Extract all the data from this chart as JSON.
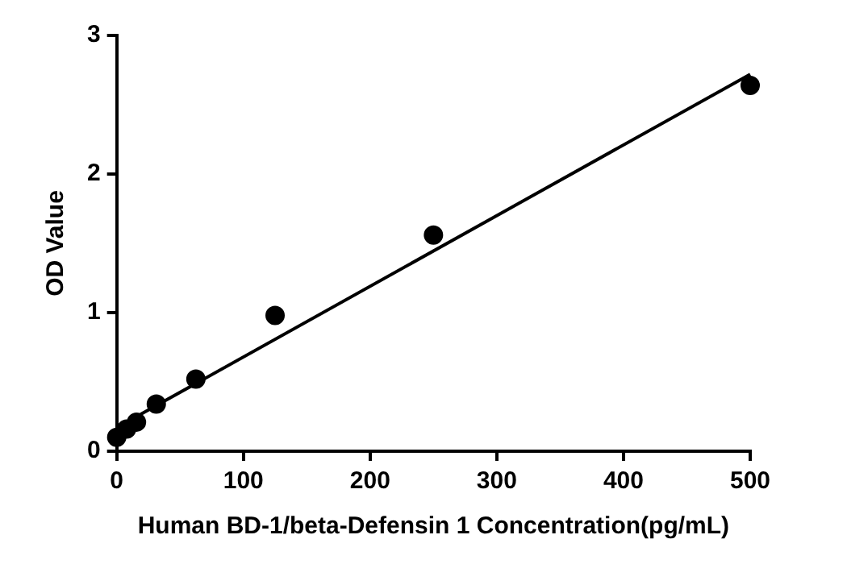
{
  "chart_data": {
    "type": "scatter",
    "xlabel": "Human BD-1/beta-Defensin 1 Concentration(pg/mL)",
    "ylabel": "OD Value",
    "xlim": [
      0,
      500
    ],
    "xticks": [
      0,
      100,
      200,
      300,
      400,
      500
    ],
    "ylim": [
      0,
      3
    ],
    "yticks": [
      0,
      1,
      2,
      3
    ],
    "grid": false,
    "legend": false,
    "marker": "circle",
    "series": [
      {
        "color": "#000000",
        "x": [
          0,
          7.8,
          15.6,
          31.25,
          62.5,
          125,
          250,
          500
        ],
        "values": [
          0.1,
          0.16,
          0.21,
          0.34,
          0.52,
          0.98,
          1.56,
          2.64
        ]
      },
      {
        "type": "line",
        "color": "#000000",
        "x": [
          0,
          500
        ],
        "values": [
          0.17,
          2.72
        ],
        "marker": "none",
        "line_style": "solid"
      }
    ]
  }
}
